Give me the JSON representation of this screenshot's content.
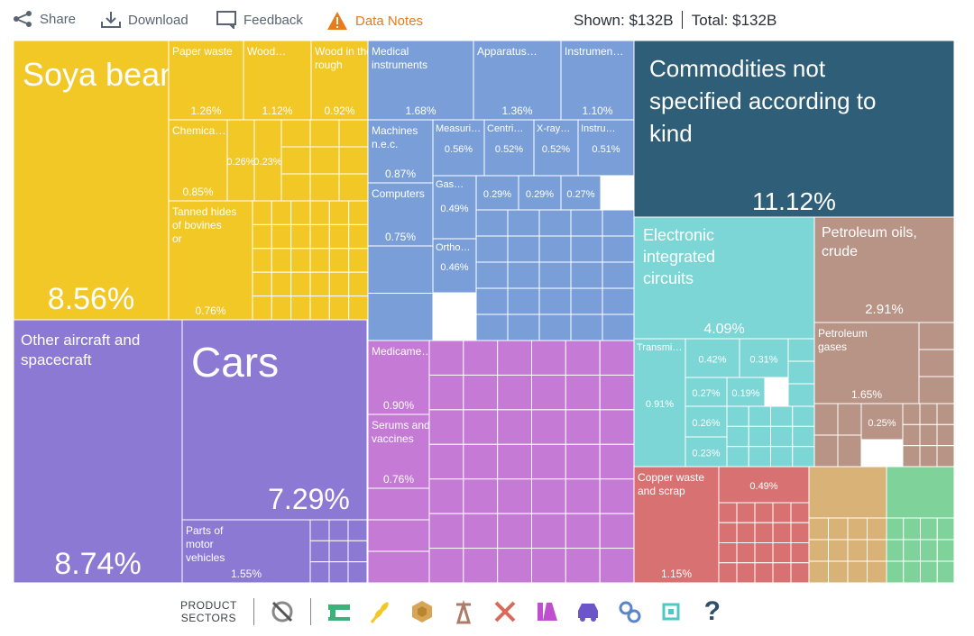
{
  "toolbar": {
    "share_label": "Share",
    "download_label": "Download",
    "feedback_label": "Feedback",
    "notes_label": "Data Notes",
    "shown_label": "Shown:",
    "shown_value": "$132B",
    "total_label": "Total:",
    "total_value": "$132B"
  },
  "legend": {
    "title_line1": "PRODUCT",
    "title_line2": "SECTORS",
    "icons": [
      "all-sectors-off-icon",
      "textiles-icon",
      "vegetables-icon",
      "stone-icon",
      "minerals-icon",
      "metals-icon",
      "chemicals-icon",
      "vehicles-icon",
      "machinery-icon",
      "electronics-icon",
      "other-icon"
    ],
    "help_label": "?"
  },
  "colors": {
    "agriculture": "#f2c827",
    "machinery": "#7a9fd8",
    "vehicles": "#8b79d3",
    "chemicals": "#c57ad6",
    "electronics": "#7dd6d6",
    "minerals": "#b89486",
    "metals": "#d87272",
    "misc": "#2e5e78",
    "stone": "#d8b277",
    "other": "#7fd39a"
  },
  "chart_data": {
    "type": "treemap",
    "total": "$132B",
    "items": [
      {
        "name": "Soya beans",
        "share": 8.56,
        "value_label": "8.56%",
        "sector": "agriculture"
      },
      {
        "name": "Paper waste",
        "share": 1.26,
        "value_label": "1.26%",
        "sector": "agriculture"
      },
      {
        "name": "Wood…",
        "share": 1.12,
        "value_label": "1.12%",
        "sector": "agriculture"
      },
      {
        "name": "Wood in the rough",
        "share": 0.92,
        "value_label": "0.92%",
        "sector": "agriculture"
      },
      {
        "name": "Chemica…",
        "share": 0.85,
        "value_label": "0.85%",
        "sector": "agriculture"
      },
      {
        "name": "",
        "share": 0.26,
        "value_label": "0.26%",
        "sector": "agriculture"
      },
      {
        "name": "",
        "share": 0.23,
        "value_label": "0.23%",
        "sector": "agriculture"
      },
      {
        "name": "Tanned hides of bovines or",
        "share": 0.76,
        "value_label": "0.76%",
        "sector": "agriculture"
      },
      {
        "name": "Medical instruments",
        "share": 1.68,
        "value_label": "1.68%",
        "sector": "machinery"
      },
      {
        "name": "Apparatus…",
        "share": 1.36,
        "value_label": "1.36%",
        "sector": "machinery"
      },
      {
        "name": "Instrumen…",
        "share": 1.1,
        "value_label": "1.10%",
        "sector": "machinery"
      },
      {
        "name": "Machines n.e.c.",
        "share": 0.87,
        "value_label": "0.87%",
        "sector": "machinery"
      },
      {
        "name": "Measuri…",
        "share": 0.56,
        "value_label": "0.56%",
        "sector": "machinery"
      },
      {
        "name": "Centri…",
        "share": 0.52,
        "value_label": "0.52%",
        "sector": "machinery"
      },
      {
        "name": "X-ray…",
        "share": 0.52,
        "value_label": "0.52%",
        "sector": "machinery"
      },
      {
        "name": "Instru…",
        "share": 0.51,
        "value_label": "0.51%",
        "sector": "machinery"
      },
      {
        "name": "Computers",
        "share": 0.75,
        "value_label": "0.75%",
        "sector": "machinery"
      },
      {
        "name": "Gas…",
        "share": 0.49,
        "value_label": "0.49%",
        "sector": "machinery"
      },
      {
        "name": "",
        "share": 0.29,
        "value_label": "0.29%",
        "sector": "machinery"
      },
      {
        "name": "",
        "share": 0.29,
        "value_label": "0.29%",
        "sector": "machinery"
      },
      {
        "name": "",
        "share": 0.27,
        "value_label": "0.27%",
        "sector": "machinery"
      },
      {
        "name": "Ortho…",
        "share": 0.46,
        "value_label": "0.46%",
        "sector": "machinery"
      },
      {
        "name": "Commodities not specified according to kind",
        "share": 11.12,
        "value_label": "11.12%",
        "sector": "misc"
      },
      {
        "name": "Electronic integrated circuits",
        "share": 4.09,
        "value_label": "4.09%",
        "sector": "electronics"
      },
      {
        "name": "Transmi…",
        "share": 0.91,
        "value_label": "0.91%",
        "sector": "electronics"
      },
      {
        "name": "",
        "share": 0.42,
        "value_label": "0.42%",
        "sector": "electronics"
      },
      {
        "name": "",
        "share": 0.31,
        "value_label": "0.31%",
        "sector": "electronics"
      },
      {
        "name": "",
        "share": 0.27,
        "value_label": "0.27%",
        "sector": "electronics"
      },
      {
        "name": "",
        "share": 0.19,
        "value_label": "0.19%",
        "sector": "electronics"
      },
      {
        "name": "",
        "share": 0.26,
        "value_label": "0.26%",
        "sector": "electronics"
      },
      {
        "name": "",
        "share": 0.23,
        "value_label": "0.23%",
        "sector": "electronics"
      },
      {
        "name": "Petroleum oils, crude",
        "share": 2.91,
        "value_label": "2.91%",
        "sector": "minerals"
      },
      {
        "name": "Petroleum gases",
        "share": 1.65,
        "value_label": "1.65%",
        "sector": "minerals"
      },
      {
        "name": "",
        "share": 0.25,
        "value_label": "0.25%",
        "sector": "minerals"
      },
      {
        "name": "Other aircraft and spacecraft",
        "share": 8.74,
        "value_label": "8.74%",
        "sector": "vehicles"
      },
      {
        "name": "Cars",
        "share": 7.29,
        "value_label": "7.29%",
        "sector": "vehicles"
      },
      {
        "name": "Parts of motor vehicles",
        "share": 1.55,
        "value_label": "1.55%",
        "sector": "vehicles"
      },
      {
        "name": "Medicame…",
        "share": 0.9,
        "value_label": "0.90%",
        "sector": "chemicals"
      },
      {
        "name": "Serums and vaccines",
        "share": 0.76,
        "value_label": "0.76%",
        "sector": "chemicals"
      },
      {
        "name": "Copper waste and scrap",
        "share": 1.15,
        "value_label": "1.15%",
        "sector": "metals"
      },
      {
        "name": "",
        "share": 0.49,
        "value_label": "0.49%",
        "sector": "metals"
      }
    ]
  }
}
